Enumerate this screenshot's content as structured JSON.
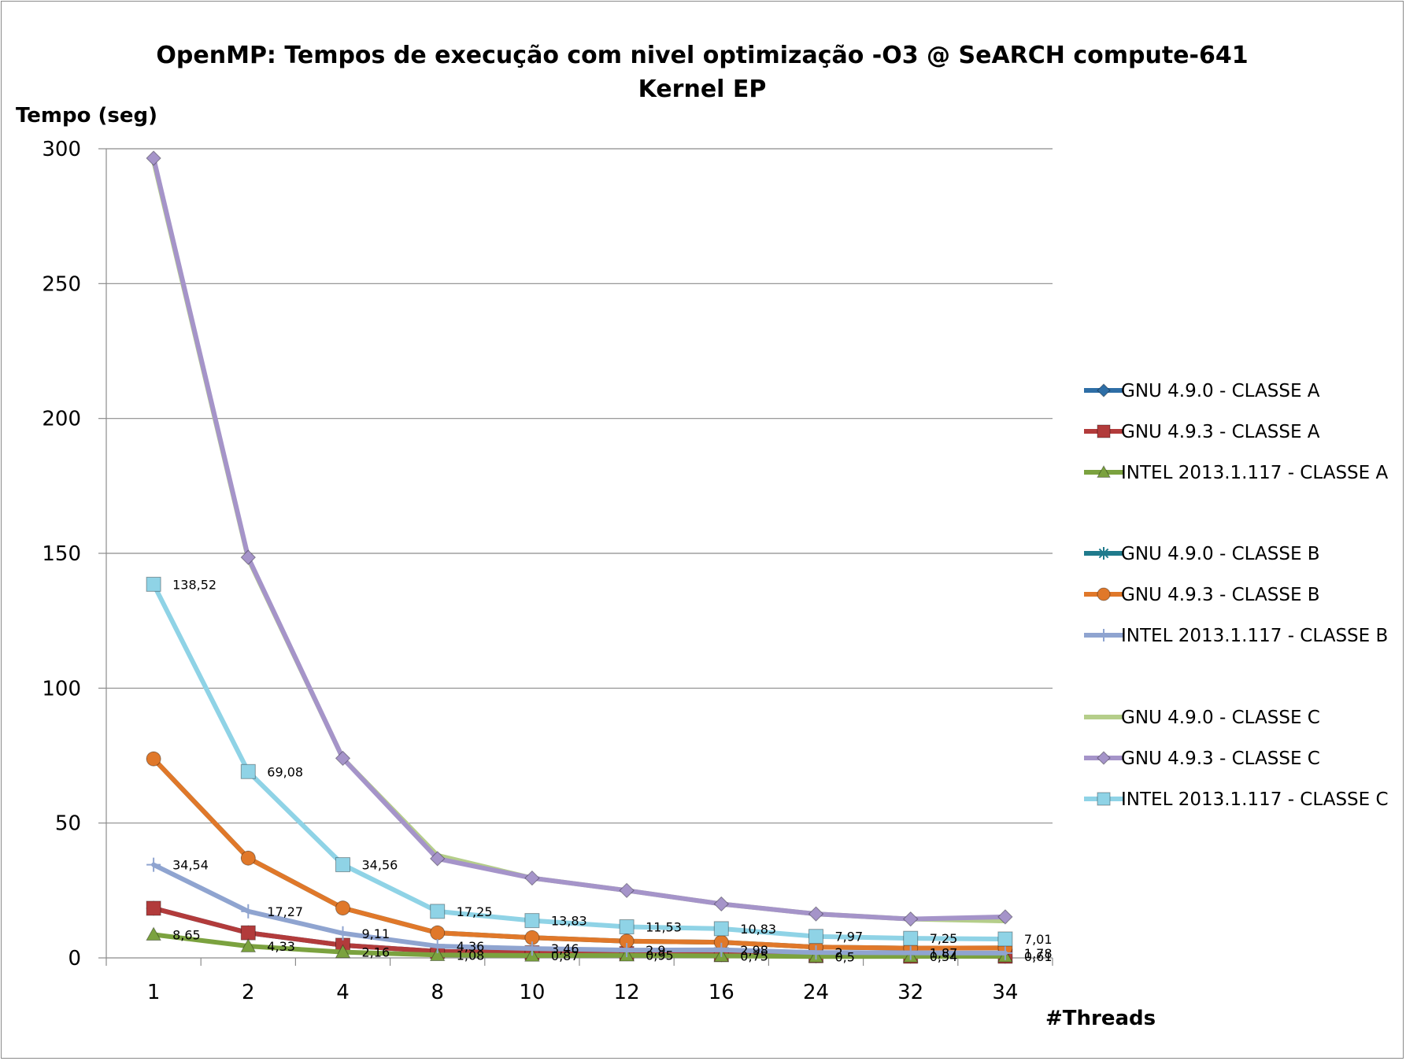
{
  "chart_data": {
    "type": "line",
    "title": "OpenMP: Tempos de execução com nivel optimização -O3 @ SeARCH compute-641",
    "subtitle": "Kernel EP",
    "xlabel": "#Threads",
    "ylabel": "Tempo (seg)",
    "categories": [
      "1",
      "2",
      "4",
      "8",
      "10",
      "12",
      "16",
      "24",
      "32",
      "34"
    ],
    "ylim": [
      0,
      300
    ],
    "yticks": [
      "0",
      "50",
      "100",
      "150",
      "200",
      "250",
      "300"
    ],
    "grid": true,
    "legend_position": "right",
    "series": [
      {
        "name": "GNU 4.9.0 - CLASSE A",
        "color": "#2e6ea6",
        "marker": "diamond",
        "values": [
          18.4,
          9.3,
          4.7,
          2.4,
          1.9,
          1.6,
          1.2,
          0.8,
          0.6,
          0.6
        ],
        "labels": []
      },
      {
        "name": "GNU 4.9.3 - CLASSE A",
        "color": "#b23b3b",
        "marker": "square",
        "values": [
          18.4,
          9.3,
          4.7,
          2.4,
          1.9,
          1.6,
          1.2,
          0.8,
          0.6,
          0.6
        ],
        "labels": []
      },
      {
        "name": "INTEL 2013.1.117 - CLASSE A",
        "color": "#7ba23f",
        "marker": "triangle",
        "values": [
          8.65,
          4.33,
          2.16,
          1.08,
          0.87,
          0.95,
          0.75,
          0.5,
          0.54,
          0.61
        ],
        "labels": [
          "8,65",
          "4,33",
          "2,16",
          "1,08",
          "0,87",
          "0,95",
          "0,75",
          "0,5",
          "0,54",
          "0,61"
        ]
      },
      {
        "name": "GNU 4.9.0 - CLASSE B",
        "color": "#1f7a8c",
        "marker": "asterisk",
        "values": [
          73.8,
          37.0,
          18.5,
          9.3,
          7.5,
          6.2,
          5.8,
          4.0,
          3.6,
          3.7
        ],
        "labels": []
      },
      {
        "name": "GNU 4.9.3 - CLASSE B",
        "color": "#e0782a",
        "marker": "circle",
        "values": [
          73.8,
          37.0,
          18.5,
          9.3,
          7.5,
          6.2,
          5.8,
          4.0,
          3.6,
          3.7
        ],
        "labels": []
      },
      {
        "name": "INTEL 2013.1.117 - CLASSE B",
        "color": "#8fa4d0",
        "marker": "plus",
        "values": [
          34.54,
          17.27,
          9.11,
          4.36,
          3.46,
          2.9,
          2.98,
          2.0,
          1.87,
          1.78
        ],
        "labels": [
          "34,54",
          "17,27",
          "9,11",
          "4,36",
          "3,46",
          "2,9",
          "2,98",
          "2",
          "1,87",
          "1,78"
        ]
      },
      {
        "name": "GNU 4.9.0 - CLASSE C",
        "color": "#b5ce8a",
        "marker": "none",
        "values": [
          295.5,
          148.0,
          74.0,
          38.0,
          29.6,
          25.0,
          20.0,
          16.3,
          14.4,
          13.7
        ],
        "labels": []
      },
      {
        "name": "GNU 4.9.3 - CLASSE C",
        "color": "#a594c9",
        "marker": "diamond",
        "values": [
          296.5,
          148.5,
          74.0,
          36.8,
          29.6,
          25.0,
          20.0,
          16.3,
          14.4,
          15.2
        ],
        "labels": []
      },
      {
        "name": "INTEL 2013.1.117 - CLASSE C",
        "color": "#8fd3e6",
        "marker": "square",
        "values": [
          138.52,
          69.08,
          34.56,
          17.25,
          13.83,
          11.53,
          10.83,
          7.97,
          7.25,
          7.01
        ],
        "labels": [
          "138,52",
          "69,08",
          "34,56",
          "17,25",
          "13,83",
          "11,53",
          "10,83",
          "7,97",
          "7,25",
          "7,01"
        ]
      }
    ]
  }
}
